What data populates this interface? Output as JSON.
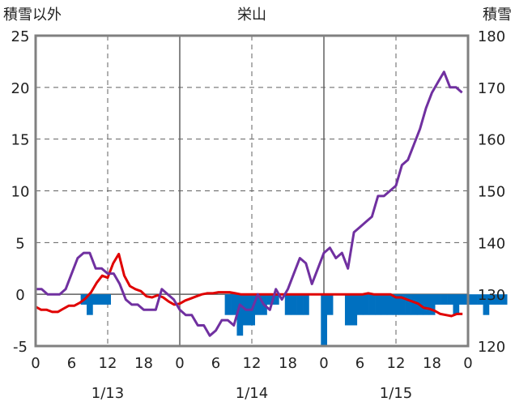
{
  "chart_data": {
    "type": "bar+line",
    "title": "栄山",
    "left_axis_label": "積雪以外",
    "right_axis_label": "積雪",
    "left_ylim": [
      -5,
      25
    ],
    "left_yticks": [
      25,
      20,
      15,
      10,
      5,
      0,
      -5
    ],
    "right_ylim": [
      120,
      180
    ],
    "right_yticks": [
      180,
      170,
      160,
      150,
      140,
      130,
      120
    ],
    "x_hour_ticks": [
      "0",
      "6",
      "12",
      "18",
      "0",
      "6",
      "12",
      "18",
      "0",
      "6",
      "12",
      "18",
      "0"
    ],
    "day_labels": [
      "1/13",
      "1/14",
      "1/15"
    ],
    "grid": true,
    "series": [
      {
        "axis": "left",
        "color": "#e00000",
        "type": "line",
        "values": [
          -1.2,
          -1.5,
          -1.5,
          -1.7,
          -1.7,
          -1.4,
          -1.1,
          -1.1,
          -0.8,
          -0.4,
          0.2,
          1.1,
          1.8,
          1.6,
          3.0,
          3.9,
          1.8,
          0.8,
          0.5,
          0.3,
          -0.2,
          -0.3,
          -0.1,
          -0.3,
          -0.7,
          -1.0,
          -0.9,
          -0.6,
          -0.4,
          -0.2,
          0.0,
          0.1,
          0.1,
          0.2,
          0.2,
          0.2,
          0.1,
          0.0,
          0.0,
          0.0,
          0.0,
          0.0,
          0.0,
          0.0,
          0.0,
          0.0,
          0.0,
          0.0,
          0.0,
          0.0,
          0.0,
          0.0,
          0.0,
          0.0,
          0.0,
          0.0,
          0.0,
          0.0,
          0.0,
          0.0,
          0.1,
          0.0,
          0.0,
          0.0,
          0.0,
          -0.3,
          -0.3,
          -0.5,
          -0.7,
          -0.9,
          -1.3,
          -1.4,
          -1.6,
          -1.9,
          -2.0,
          -2.1,
          -1.9,
          -1.9
        ]
      },
      {
        "axis": "left",
        "color": "#0070c0",
        "type": "bar",
        "values": [
          0,
          0,
          0,
          0,
          0,
          0,
          0,
          -1,
          -2,
          -1,
          -1,
          -1,
          0,
          0,
          0,
          0,
          0,
          0,
          0,
          0,
          0,
          0,
          0,
          0,
          0,
          0,
          0,
          0,
          0,
          0,
          0,
          -2,
          -2,
          -4,
          -3,
          -3,
          -2,
          -2,
          -1,
          -1,
          0,
          -2,
          -2,
          -2,
          -2,
          0,
          0,
          -5,
          -2,
          0,
          0,
          -3,
          -3,
          -2,
          -2,
          -2,
          -2,
          -2,
          -2,
          -2,
          -2,
          -2,
          -2,
          -2,
          -2,
          -2,
          -1,
          -1,
          -1,
          -2,
          -1,
          -1,
          -1,
          -1,
          -2,
          -1,
          -1,
          -1
        ]
      },
      {
        "axis": "right",
        "color": "#7030a0",
        "type": "line",
        "values": [
          131,
          131,
          130,
          130,
          130,
          131,
          134,
          137,
          138,
          138,
          135,
          135,
          134,
          134,
          132,
          129,
          128,
          128,
          127,
          127,
          127,
          131,
          130,
          129,
          127,
          126,
          126,
          124,
          124,
          122,
          123,
          125,
          125,
          124,
          128,
          127,
          127,
          130,
          128,
          127,
          131,
          129,
          131,
          134,
          137,
          136,
          132,
          135,
          138,
          139,
          137,
          138,
          135,
          142,
          143,
          144,
          145,
          149,
          149,
          150,
          151,
          155,
          156,
          159,
          162,
          166,
          169,
          171,
          173,
          170,
          170,
          169
        ]
      }
    ]
  }
}
